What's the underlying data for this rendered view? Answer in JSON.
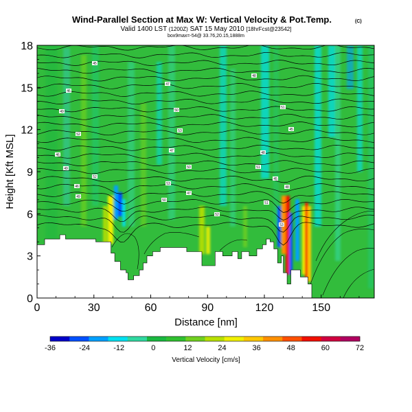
{
  "header": {
    "title": "Wind-Parallel Section at Max W: Vertical Velocity & Pot.Temp.",
    "copyright": "(C)",
    "valid_prefix": "Valid 1400 LST",
    "valid_utc": "(1200Z)",
    "valid_date": "SAT 15 May 2010",
    "forecast": "[18hrFcst@23542]",
    "location": "box9max=-54@ 33.76,20.15,1888m"
  },
  "chart_data": {
    "type": "heatmap",
    "title": "Wind-Parallel Section at Max W: Vertical Velocity & Pot.Temp.",
    "xlabel": "Distance [nm]",
    "ylabel": "Height [Kft MSL]",
    "xlim": [
      0,
      178
    ],
    "ylim": [
      0,
      18
    ],
    "x_ticks": [
      0,
      30,
      60,
      90,
      120,
      150
    ],
    "y_ticks": [
      0,
      3,
      6,
      9,
      12,
      15,
      18
    ],
    "colorbar": {
      "label": "Vertical Velocity [cm/s]",
      "min": -36,
      "max": 72,
      "ticks": [
        -36,
        -24,
        -12,
        0,
        12,
        24,
        36,
        48,
        60,
        72
      ],
      "colors": [
        "#0000c8",
        "#0050ff",
        "#00a0ff",
        "#00e0f0",
        "#30d8a0",
        "#1ab840",
        "#30c030",
        "#70d020",
        "#b8e000",
        "#f0f000",
        "#ffc800",
        "#ff9000",
        "#ff5000",
        "#f01000",
        "#d00040",
        "#b00060"
      ]
    },
    "terrain_kft": [
      [
        0,
        3.8
      ],
      [
        4,
        3.8
      ],
      [
        4,
        4.2
      ],
      [
        12,
        4.2
      ],
      [
        12,
        4.5
      ],
      [
        15,
        4.5
      ],
      [
        15,
        4.2
      ],
      [
        31,
        4.2
      ],
      [
        31,
        4.0
      ],
      [
        39,
        4.0
      ],
      [
        39,
        3.2
      ],
      [
        41,
        3.2
      ],
      [
        41,
        2.6
      ],
      [
        44,
        2.6
      ],
      [
        44,
        2.0
      ],
      [
        47,
        2.0
      ],
      [
        47,
        1.8
      ],
      [
        48,
        1.8
      ],
      [
        48,
        1.3
      ],
      [
        51,
        1.3
      ],
      [
        51,
        1.6
      ],
      [
        54,
        1.6
      ],
      [
        54,
        2.0
      ],
      [
        56,
        2.0
      ],
      [
        56,
        2.5
      ],
      [
        58,
        2.5
      ],
      [
        58,
        3.0
      ],
      [
        61,
        3.0
      ],
      [
        61,
        3.3
      ],
      [
        65,
        3.3
      ],
      [
        65,
        3.6
      ],
      [
        79,
        3.6
      ],
      [
        79,
        3.3
      ],
      [
        87,
        3.3
      ],
      [
        87,
        2.3
      ],
      [
        94,
        2.3
      ],
      [
        94,
        3.3
      ],
      [
        98,
        3.3
      ],
      [
        98,
        3.0
      ],
      [
        103,
        3.0
      ],
      [
        103,
        3.3
      ],
      [
        106,
        3.3
      ],
      [
        106,
        2.8
      ],
      [
        108,
        2.8
      ],
      [
        108,
        3.3
      ],
      [
        112,
        3.3
      ],
      [
        112,
        3.0
      ],
      [
        116,
        3.0
      ],
      [
        116,
        3.5
      ],
      [
        119,
        3.5
      ],
      [
        119,
        3.8
      ],
      [
        121,
        3.8
      ],
      [
        121,
        4.2
      ],
      [
        123,
        4.2
      ],
      [
        123,
        4.0
      ],
      [
        125,
        4.0
      ],
      [
        125,
        3.5
      ],
      [
        127,
        3.5
      ],
      [
        127,
        2.5
      ],
      [
        129,
        2.5
      ],
      [
        129,
        3.0
      ],
      [
        130,
        3.0
      ],
      [
        130,
        1.8
      ],
      [
        132,
        1.8
      ],
      [
        132,
        1.0
      ],
      [
        134,
        1.0
      ],
      [
        134,
        2.0
      ],
      [
        139,
        2.0
      ],
      [
        139,
        1.5
      ],
      [
        143,
        1.5
      ],
      [
        143,
        1.0
      ],
      [
        145,
        1.0
      ],
      [
        145,
        0
      ],
      [
        178,
        0
      ]
    ],
    "theta_label_sample": [
      "45",
      "46",
      "47",
      "48",
      "49",
      "50",
      "51",
      "52",
      "53"
    ]
  }
}
